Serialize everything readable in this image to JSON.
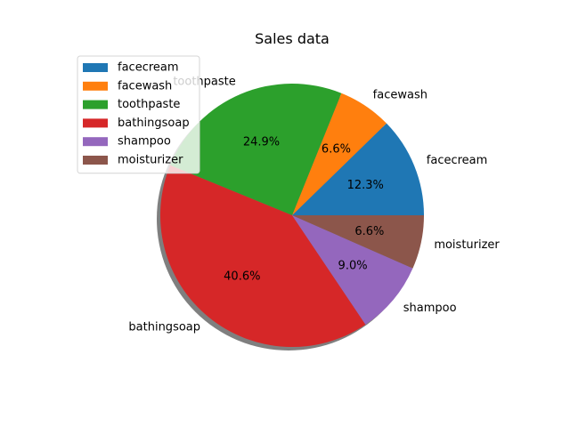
{
  "chart_data": {
    "type": "pie",
    "title": "Sales data",
    "categories": [
      "facecream",
      "facewash",
      "toothpaste",
      "bathingsoap",
      "shampoo",
      "moisturizer"
    ],
    "values": [
      12.3,
      6.6,
      24.9,
      40.6,
      9.0,
      6.6
    ],
    "value_labels": [
      "12.3%",
      "6.6%",
      "24.9%",
      "40.6%",
      "9.0%",
      "6.6%"
    ],
    "colors": [
      "#1f77b4",
      "#ff7f0e",
      "#2ca02c",
      "#d62728",
      "#9467bd",
      "#8c564b"
    ],
    "start_angle_deg": 0,
    "direction": "counterclockwise",
    "shadow": true,
    "legend": {
      "placement": "upper-left",
      "entries": [
        "facecream",
        "facewash",
        "toothpaste",
        "bathingsoap",
        "shampoo",
        "moisturizer"
      ]
    }
  }
}
